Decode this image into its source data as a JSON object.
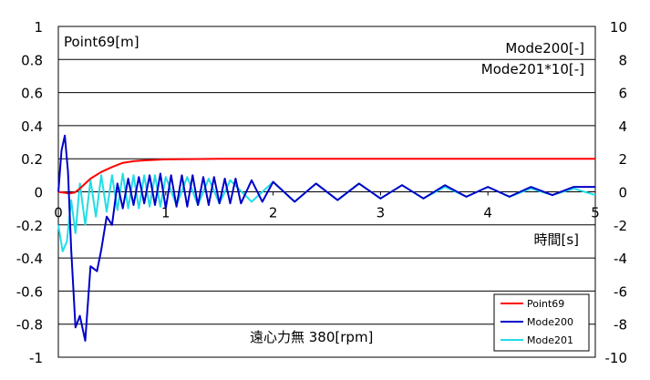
{
  "chart_data": {
    "type": "line",
    "left_axis_label": "Point69[m]",
    "right_axis_labels": [
      "Mode200[-]",
      "Mode201*10[-]"
    ],
    "xlabel": "時間[s]",
    "caption": "遠心力無  380[rpm]",
    "xlim": [
      0,
      5
    ],
    "ylim_left": [
      -1,
      1
    ],
    "ylim_right": [
      -10,
      10
    ],
    "x_ticks": [
      "0",
      "1",
      "2",
      "3",
      "4",
      "5"
    ],
    "y_ticks_left": [
      "1",
      "0.8",
      "0.6",
      "0.4",
      "0.2",
      "0",
      "-0.2",
      "-0.4",
      "-0.6",
      "-0.8",
      "-1"
    ],
    "y_ticks_right": [
      "10",
      "8",
      "6",
      "4",
      "2",
      "0",
      "-2",
      "-4",
      "-6",
      "-8",
      "-10"
    ],
    "grid": "horizontal",
    "legend_position": "bottom-right",
    "series": [
      {
        "name": "Point69",
        "color": "#ff0000",
        "axis": "left",
        "x": [
          0,
          0.1,
          0.15,
          0.2,
          0.25,
          0.3,
          0.4,
          0.5,
          0.6,
          0.7,
          0.8,
          1.0,
          1.2,
          1.5,
          2.0,
          3.0,
          4.0,
          5.0
        ],
        "y": [
          0,
          -0.01,
          -0.005,
          0.02,
          0.05,
          0.08,
          0.12,
          0.15,
          0.175,
          0.185,
          0.19,
          0.196,
          0.198,
          0.2,
          0.2,
          0.2,
          0.2,
          0.2
        ]
      },
      {
        "name": "Mode200",
        "color": "#0000c8",
        "axis": "right",
        "x": [
          0,
          0.03,
          0.06,
          0.09,
          0.12,
          0.16,
          0.2,
          0.25,
          0.3,
          0.36,
          0.4,
          0.45,
          0.5,
          0.55,
          0.6,
          0.65,
          0.7,
          0.75,
          0.8,
          0.85,
          0.9,
          0.95,
          1.0,
          1.05,
          1.1,
          1.15,
          1.2,
          1.25,
          1.3,
          1.35,
          1.4,
          1.45,
          1.5,
          1.55,
          1.6,
          1.65,
          1.7,
          1.8,
          1.9,
          2.0,
          2.2,
          2.4,
          2.6,
          2.8,
          3.0,
          3.2,
          3.4,
          3.6,
          3.8,
          4.0,
          4.2,
          4.4,
          4.6,
          4.8,
          5.0
        ],
        "y": [
          0,
          2.5,
          3.4,
          1.2,
          -3.5,
          -8.2,
          -7.5,
          -9.0,
          -4.5,
          -4.8,
          -3.5,
          -1.5,
          -2.0,
          0.5,
          -1.0,
          0.8,
          -0.8,
          0.9,
          -0.7,
          1.0,
          -0.8,
          1.1,
          -1.0,
          1.0,
          -0.9,
          1.0,
          -0.9,
          1.0,
          -0.8,
          0.9,
          -0.8,
          0.9,
          -0.7,
          0.8,
          -0.7,
          0.8,
          -0.7,
          0.7,
          -0.6,
          0.6,
          -0.6,
          0.5,
          -0.5,
          0.5,
          -0.4,
          0.4,
          -0.4,
          0.4,
          -0.3,
          0.3,
          -0.3,
          0.3,
          -0.2,
          0.3,
          0.3
        ]
      },
      {
        "name": "Mode201",
        "color": "#22dde6",
        "axis": "right",
        "x": [
          0,
          0.04,
          0.08,
          0.12,
          0.16,
          0.2,
          0.25,
          0.3,
          0.35,
          0.4,
          0.45,
          0.5,
          0.55,
          0.6,
          0.65,
          0.7,
          0.75,
          0.8,
          0.85,
          0.9,
          0.95,
          1.0,
          1.1,
          1.2,
          1.3,
          1.4,
          1.5,
          1.6,
          1.8,
          2.0,
          2.2,
          2.4,
          2.6,
          2.8,
          3.0,
          3.2,
          3.4,
          3.6,
          3.8,
          4.0,
          4.2,
          4.4,
          4.6,
          4.8,
          5.0
        ],
        "y": [
          -2.0,
          -3.6,
          -3.0,
          -0.5,
          -2.5,
          0.5,
          -2.0,
          0.7,
          -1.5,
          1.0,
          -1.2,
          1.0,
          -1.1,
          1.1,
          -1.0,
          1.0,
          -1.0,
          1.0,
          -0.9,
          1.0,
          -0.9,
          0.9,
          -0.8,
          0.9,
          -0.8,
          0.8,
          -0.7,
          0.7,
          -0.6,
          0.6,
          -0.6,
          0.5,
          -0.5,
          0.5,
          -0.4,
          0.4,
          -0.4,
          0.3,
          -0.3,
          0.3,
          -0.3,
          0.2,
          -0.2,
          0.2,
          -0.2
        ]
      }
    ]
  }
}
